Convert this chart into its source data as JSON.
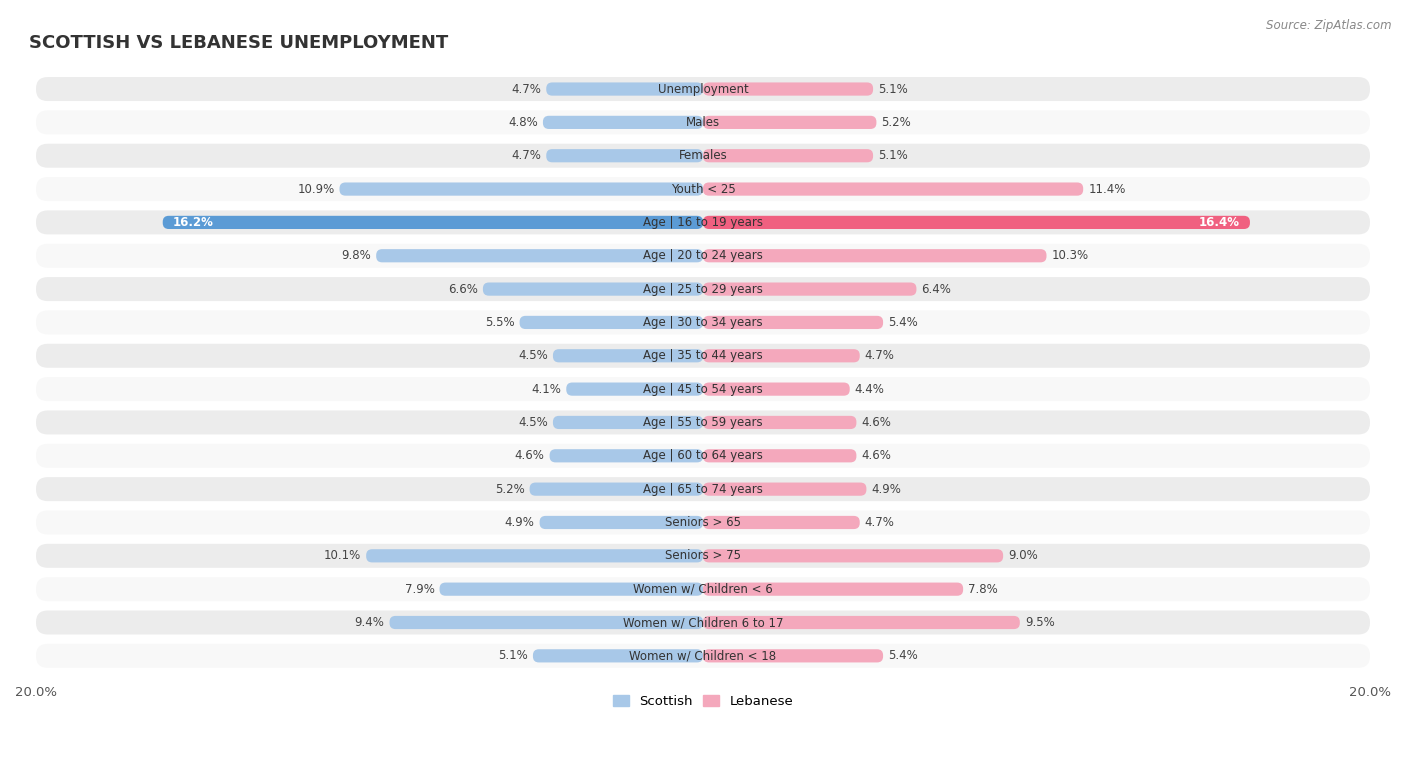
{
  "title": "SCOTTISH VS LEBANESE UNEMPLOYMENT",
  "source": "Source: ZipAtlas.com",
  "categories": [
    "Unemployment",
    "Males",
    "Females",
    "Youth < 25",
    "Age | 16 to 19 years",
    "Age | 20 to 24 years",
    "Age | 25 to 29 years",
    "Age | 30 to 34 years",
    "Age | 35 to 44 years",
    "Age | 45 to 54 years",
    "Age | 55 to 59 years",
    "Age | 60 to 64 years",
    "Age | 65 to 74 years",
    "Seniors > 65",
    "Seniors > 75",
    "Women w/ Children < 6",
    "Women w/ Children 6 to 17",
    "Women w/ Children < 18"
  ],
  "scottish": [
    4.7,
    4.8,
    4.7,
    10.9,
    16.2,
    9.8,
    6.6,
    5.5,
    4.5,
    4.1,
    4.5,
    4.6,
    5.2,
    4.9,
    10.1,
    7.9,
    9.4,
    5.1
  ],
  "lebanese": [
    5.1,
    5.2,
    5.1,
    11.4,
    16.4,
    10.3,
    6.4,
    5.4,
    4.7,
    4.4,
    4.6,
    4.6,
    4.9,
    4.7,
    9.0,
    7.8,
    9.5,
    5.4
  ],
  "scottish_color_normal": "#a8c8e8",
  "lebanese_color_normal": "#f4a8bc",
  "scottish_color_highlight": "#5b9bd5",
  "lebanese_color_highlight": "#f06080",
  "highlight_rows": [
    4
  ],
  "max_val": 20.0,
  "row_bg_odd": "#e8e8e8",
  "row_bg_even": "#f0f0f0",
  "fig_bg": "#ffffff",
  "legend_scottish_color": "#a8c8e8",
  "legend_lebanese_color": "#f4a8bc"
}
